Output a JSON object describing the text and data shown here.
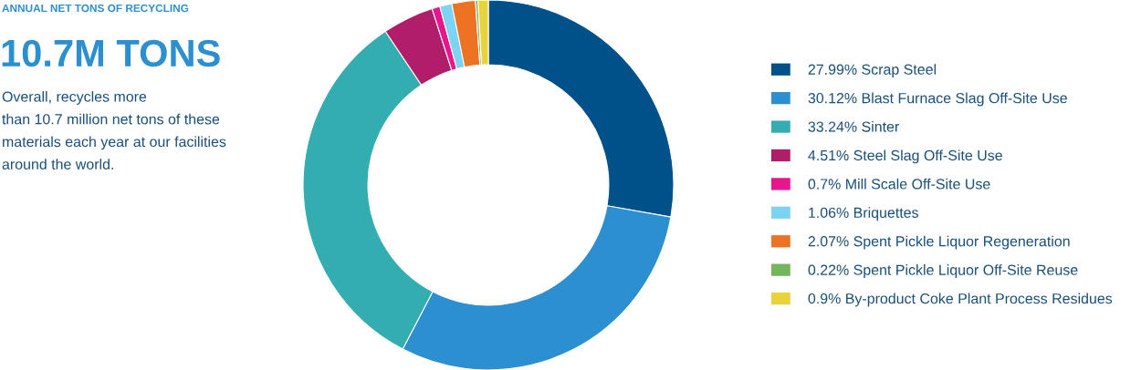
{
  "chart_data": {
    "type": "donut",
    "title": "ANNUAL NET TONS OF RECYCLING",
    "subtitle": "10.7M TONS",
    "annotations": [
      "Overall, recycles more\nthan 10.7 million net tons of these\nmaterials each year at our facilities\naround the world."
    ],
    "categories": [
      "27.99% Scrap Steel",
      "30.12% Blast Furnace Slag Off-Site Use",
      "33.24% Sinter",
      "4.51% Steel Slag Off-Site Use",
      "0.7% Mill Scale Off-Site Use",
      "1.06% Briquettes",
      "2.07% Spent Pickle Liquor Regeneration",
      "0.22% Spent Pickle Liquor Off-Site Reuse",
      "0.9% By-product Coke Plant Process Residues"
    ],
    "values": [
      27.99,
      30.12,
      33.24,
      4.51,
      0.7,
      1.06,
      2.07,
      0.22,
      0.9
    ],
    "colors": [
      "#00508a",
      "#2b8fd0",
      "#33adb0",
      "#b01d68",
      "#e8168c",
      "#7dd3f2",
      "#ec7224",
      "#72b55c",
      "#e8d43a"
    ],
    "legend": "right"
  }
}
